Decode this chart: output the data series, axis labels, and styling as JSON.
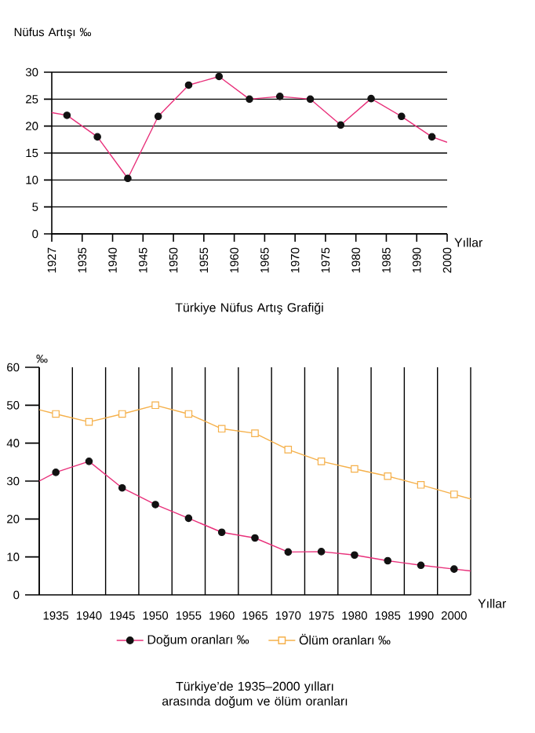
{
  "chart_data": [
    {
      "type": "line",
      "title": "Türkiye Nüfus Artış Grafiği",
      "xlabel": "Yıllar",
      "ylabel": "Nüfus Artışı ‰",
      "categories": [
        "1927",
        null,
        "1935",
        null,
        "1940",
        null,
        "1945",
        null,
        "1950",
        null,
        "1955",
        null,
        "1960",
        null,
        "1965",
        null,
        "1970",
        null,
        "1975",
        null,
        "1980",
        null,
        "1985",
        null,
        "1990",
        null,
        "2000"
      ],
      "ylim": [
        0,
        30
      ],
      "yticks": [
        0,
        5,
        10,
        15,
        20,
        25,
        30
      ],
      "grid": "y",
      "series": [
        {
          "color": "#e8307a",
          "values": [
            22.5,
            22,
            null,
            18,
            null,
            10.3,
            null,
            21.8,
            null,
            27.6,
            null,
            29.2,
            null,
            25,
            null,
            25.5,
            null,
            25,
            null,
            20.2,
            null,
            25.1,
            null,
            21.8,
            null,
            18,
            17
          ]
        },
        {
          "type": "scatter",
          "color": "#111111",
          "marker": "circle",
          "values": [
            null,
            22,
            null,
            18,
            null,
            10.3,
            null,
            21.8,
            null,
            27.6,
            null,
            29.2,
            null,
            25,
            null,
            25.5,
            null,
            25,
            null,
            20.2,
            null,
            25.1,
            null,
            21.8,
            null,
            18,
            null
          ]
        }
      ]
    },
    {
      "type": "line",
      "title": "Türkiye’de 1935–2000 yılları arasında doğum ve ölüm oranları",
      "xlabel": "Yıllar",
      "ylabel": "‰",
      "categories": [
        null,
        "1935",
        null,
        "1940",
        null,
        "1945",
        null,
        "1950",
        null,
        "1955",
        null,
        "1960",
        null,
        "1965",
        null,
        "1970",
        null,
        "1975",
        null,
        "1980",
        null,
        "1985",
        null,
        "1990",
        null,
        "2000",
        null
      ],
      "ylim": [
        0,
        60
      ],
      "yticks": [
        0,
        10,
        20,
        30,
        40,
        50,
        60
      ],
      "grid": "x",
      "legend": "bottom",
      "series": [
        {
          "name": "Doğum oranları ‰",
          "color": "#e8307a",
          "values": [
            30,
            32.3,
            null,
            35.2,
            null,
            28.2,
            null,
            23.8,
            null,
            20.2,
            null,
            16.5,
            null,
            15,
            null,
            11.3,
            null,
            11.4,
            null,
            10.5,
            null,
            9,
            null,
            7.8,
            null,
            6.8,
            6.3
          ]
        },
        {
          "type": "scatter",
          "color": "#111111",
          "marker": "circle",
          "values": [
            null,
            32.3,
            null,
            35.2,
            null,
            28.2,
            null,
            23.8,
            null,
            20.2,
            null,
            16.5,
            null,
            15,
            null,
            11.3,
            null,
            11.4,
            null,
            10.5,
            null,
            9,
            null,
            7.8,
            null,
            6.8,
            null
          ]
        },
        {
          "name": "Ölüm oranları ‰",
          "color": "#f5b04a",
          "values": [
            48.8,
            47.7,
            null,
            45.6,
            null,
            47.7,
            null,
            50,
            null,
            47.7,
            null,
            43.8,
            null,
            42.6,
            null,
            38.3,
            null,
            35.2,
            null,
            33.2,
            null,
            31.3,
            null,
            29,
            null,
            26.5,
            25.3
          ]
        },
        {
          "type": "scatter",
          "color": "#f5b04a",
          "marker": "square",
          "values": [
            null,
            47.7,
            null,
            45.6,
            null,
            47.7,
            null,
            50,
            null,
            47.7,
            null,
            43.8,
            null,
            42.6,
            null,
            38.3,
            null,
            35.2,
            null,
            33.2,
            null,
            31.3,
            null,
            29,
            null,
            26.5,
            null
          ]
        }
      ]
    }
  ]
}
